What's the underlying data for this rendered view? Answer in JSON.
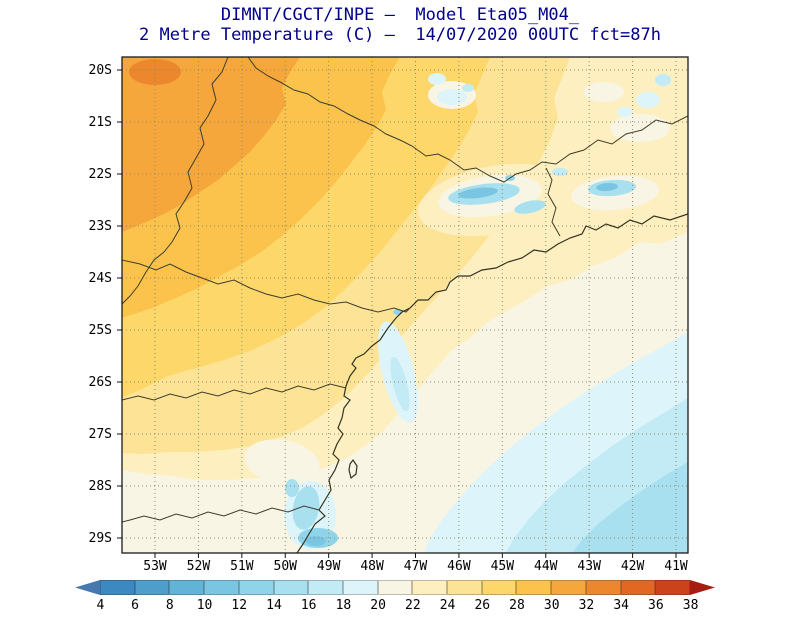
{
  "header": {
    "title_line1": "DIMNT/CGCT/INPE —  Model Eta05_M04_",
    "title_line2": "2 Metre Temperature (C) —  14/07/2020 00UTC fct=87h",
    "title_color": "#00008b"
  },
  "map": {
    "lat_labels": [
      "20S",
      "21S",
      "22S",
      "23S",
      "24S",
      "25S",
      "26S",
      "27S",
      "28S",
      "29S"
    ],
    "lon_labels": [
      "53W",
      "52W",
      "51W",
      "50W",
      "49W",
      "48W",
      "47W",
      "46W",
      "45W",
      "44W",
      "43W",
      "42W",
      "41W"
    ]
  },
  "colorbar": {
    "values": [
      "4",
      "6",
      "8",
      "10",
      "12",
      "14",
      "16",
      "18",
      "20",
      "22",
      "24",
      "26",
      "28",
      "30",
      "32",
      "34",
      "36",
      "38"
    ],
    "segment_colors": [
      "#4878b0",
      "#3c88c0",
      "#4e9ecb",
      "#62b4d6",
      "#7ac6e2",
      "#90d4ea",
      "#a8e0f0",
      "#c2ebf6",
      "#ddf4fa",
      "#f8f5e4",
      "#fdefc0",
      "#fde396",
      "#fdd76a",
      "#fbc34c",
      "#f5a73c",
      "#ec872e",
      "#e16722",
      "#cc421a",
      "#a81c12"
    ]
  }
}
